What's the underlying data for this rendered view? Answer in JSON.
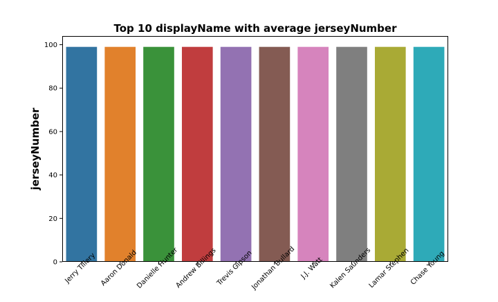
{
  "chart_data": {
    "type": "bar",
    "title": "Top 10 displayName with average jerseyNumber",
    "xlabel": "",
    "ylabel": "jerseyNumber",
    "categories": [
      "Jerry Tillery",
      "Aaron Donald",
      "Danielle Hunter",
      "Andrew Billings",
      "Trevis Gipson",
      "Jonathan Bullard",
      "J.J. Watt",
      "Kalen Saunders",
      "Lamar Stephen",
      "Chase Young"
    ],
    "values": [
      99,
      99,
      99,
      99,
      99,
      99,
      99,
      99,
      99,
      99
    ],
    "ylim": [
      0,
      104
    ],
    "yticks": [
      0,
      20,
      40,
      60,
      80,
      100
    ],
    "grid": false,
    "legend": false,
    "colors": [
      "#3274a1",
      "#e1812c",
      "#3a923a",
      "#c03d3e",
      "#9372b2",
      "#845b53",
      "#d684bd",
      "#7f7f7f",
      "#a9aa35",
      "#2eaab8"
    ]
  }
}
